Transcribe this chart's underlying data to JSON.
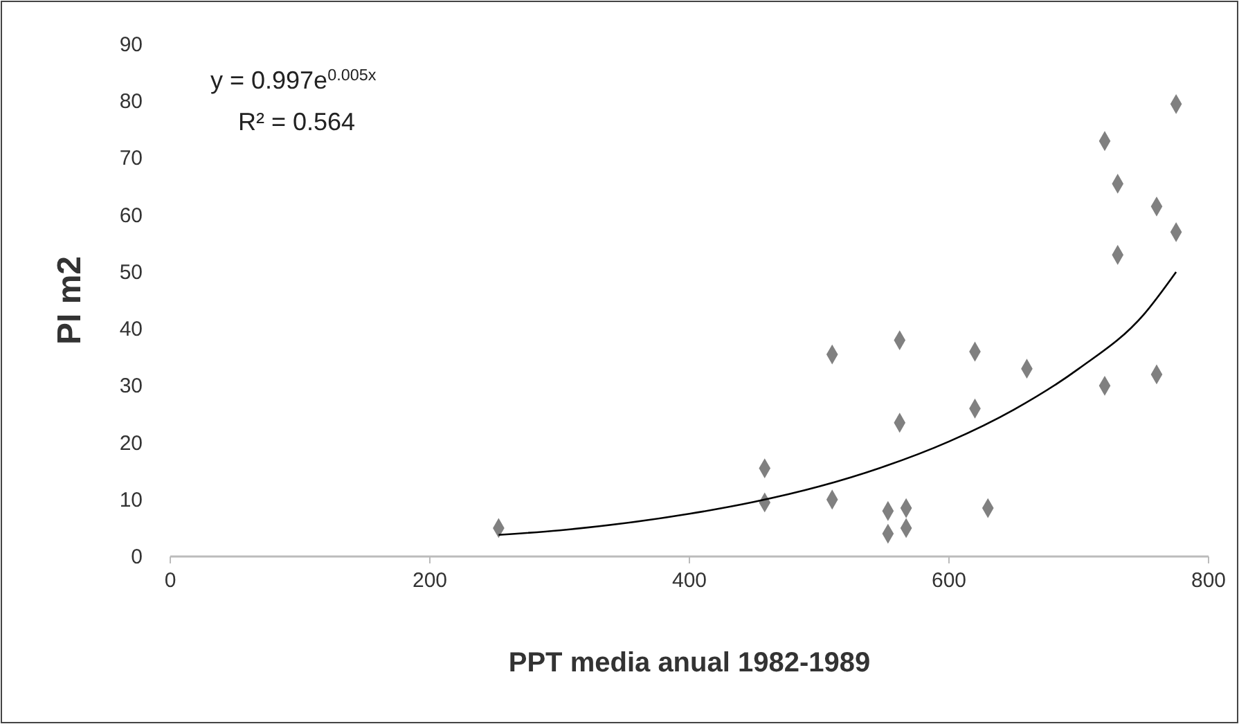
{
  "chart_data": {
    "type": "scatter",
    "xlabel": "PPT media anual 1982-1989",
    "ylabel": "PI m2",
    "xlim": [
      0,
      800
    ],
    "ylim": [
      0,
      90
    ],
    "xticks": [
      0,
      200,
      400,
      600,
      800
    ],
    "yticks": [
      0,
      10,
      20,
      30,
      40,
      50,
      60,
      70,
      80,
      90
    ],
    "grid": false,
    "marker": "diamond",
    "annotations": [
      "y = 0.997e$^{0.005x}$",
      "R² = 0.564"
    ],
    "series": [
      {
        "color": "#808080",
        "x": [
          253,
          458,
          458,
          510,
          510,
          553,
          553,
          562,
          562,
          567,
          567,
          620,
          620,
          630,
          660,
          720,
          720,
          730,
          730,
          760,
          760,
          775,
          775
        ],
        "values": [
          5,
          15.5,
          9.5,
          35.5,
          10,
          8,
          4,
          38,
          23.5,
          8.5,
          5,
          36,
          26,
          8.5,
          33,
          73,
          30,
          65.5,
          53,
          61.5,
          32,
          79.5,
          57
        ]
      },
      {
        "type": "line",
        "color": "#000000",
        "marker": "none",
        "x": [
          253,
          300,
          400,
          450,
          500,
          550,
          600,
          650,
          700,
          750,
          775
        ],
        "values": [
          3.8,
          4.6,
          7.5,
          9.6,
          12.3,
          15.8,
          20.2,
          25.8,
          33,
          42.5,
          50
        ]
      }
    ]
  }
}
